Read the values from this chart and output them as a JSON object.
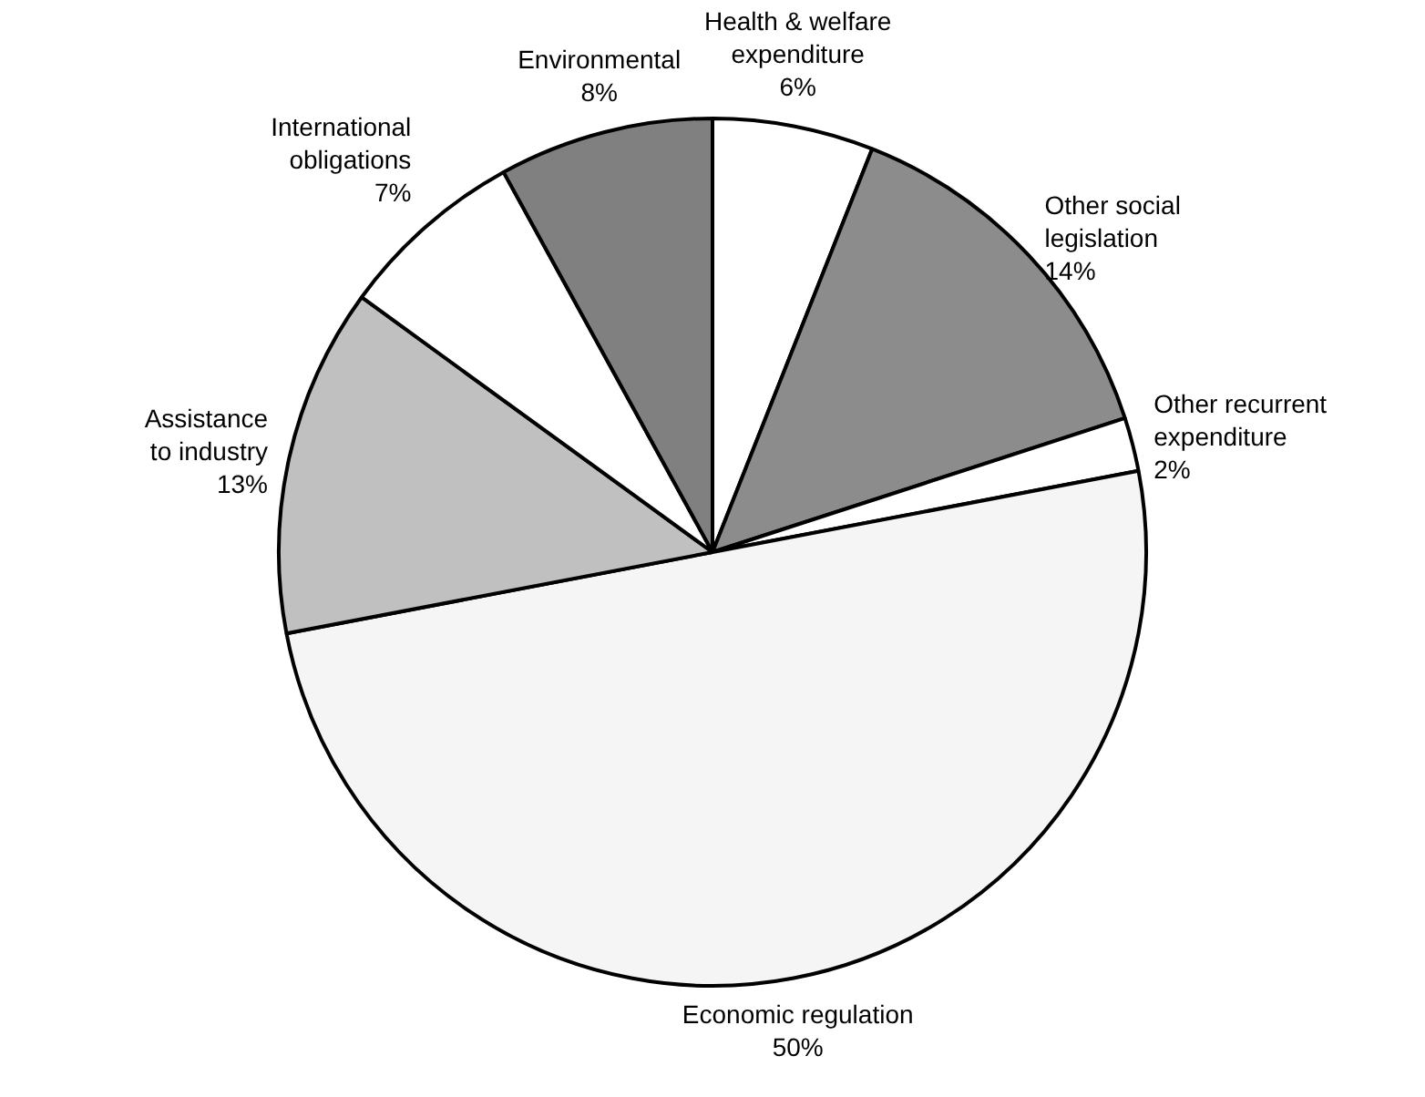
{
  "chart_data": {
    "type": "pie",
    "categories": [
      "Health & welfare\nexpenditure",
      "Other social\nlegislation",
      "Other recurrent\nexpenditure",
      "Economic regulation",
      "Assistance\nto industry",
      "International\nobligations",
      "Environmental"
    ],
    "values": [
      6,
      14,
      2,
      50,
      13,
      7,
      8
    ],
    "value_labels": [
      "6%",
      "14%",
      "2%",
      "50%",
      "13%",
      "7%",
      "8%"
    ],
    "colors": [
      "#ffffff",
      "#8c8c8c",
      "#ffffff",
      "#f5f5f5",
      "#c0c0c0",
      "#ffffff",
      "#808080"
    ],
    "legend": false
  }
}
